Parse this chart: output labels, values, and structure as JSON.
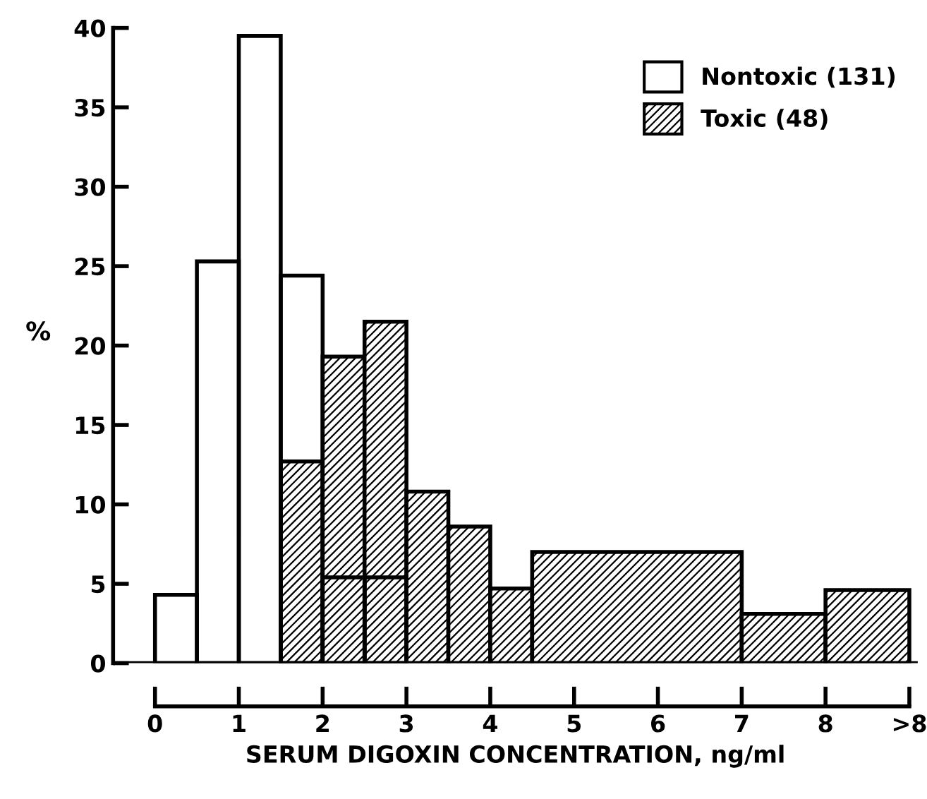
{
  "chart_data": {
    "type": "histogram",
    "xlabel": "SERUM DIGOXIN CONCENTRATION, ng/ml",
    "ylabel": "%",
    "bins": [
      0,
      0.5,
      1,
      1.5,
      2,
      2.5,
      3
    ],
    "series": [
      {
        "name": "Nontoxic (131)",
        "color": "#000000",
        "values": [
          4.3,
          25.3,
          39.5,
          24.4,
          5.4,
          5.4
        ]
      },
      {
        "name": "Toxic (48)",
        "color": "#000000",
        "bins": [
          1.5,
          2,
          2.5,
          3,
          3.5,
          4,
          4.5,
          7,
          8,
          9
        ],
        "values": [
          12.7,
          19.3,
          21.5,
          10.8,
          8.6,
          4.7,
          7.0,
          3.1,
          4.6
        ]
      }
    ],
    "xlim": [
      -0.5,
      9.1
    ],
    "ylim": [
      0,
      40
    ],
    "xticks": [
      0,
      1,
      2,
      3,
      4,
      5,
      6,
      7,
      8,
      {
        "value": 9,
        "label": ">8"
      }
    ],
    "yticks": [
      0,
      5,
      10,
      15,
      20,
      25,
      30,
      35,
      40
    ],
    "ref_lines": [
      {
        "axis": "y",
        "value": 0
      }
    ],
    "legend": "top right",
    "grid": false
  }
}
